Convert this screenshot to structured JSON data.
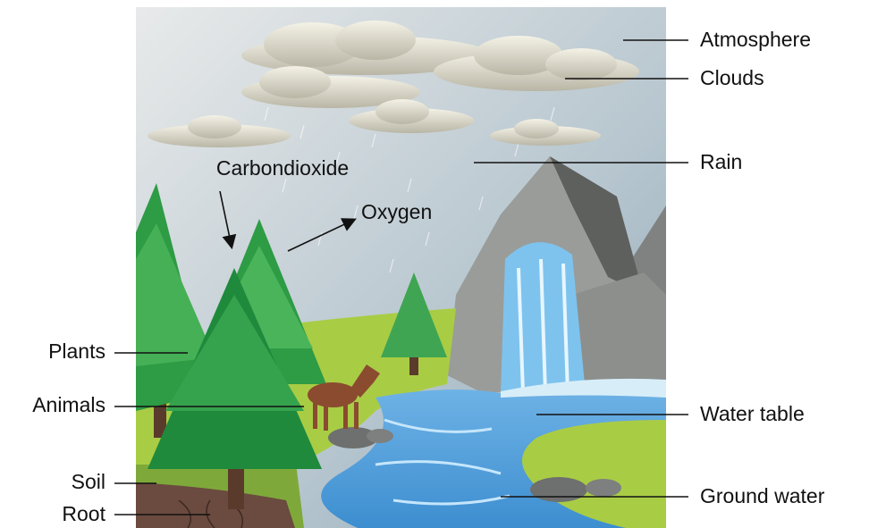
{
  "labels": {
    "atmosphere": "Atmosphere",
    "clouds": "Clouds",
    "rain": "Rain",
    "carbondioxide": "Carbondioxide",
    "oxygen": "Oxygen",
    "plants": "Plants",
    "animals": "Animals",
    "soil": "Soil",
    "root": "Root",
    "water_table": "Water table",
    "ground_water": "Ground water"
  }
}
